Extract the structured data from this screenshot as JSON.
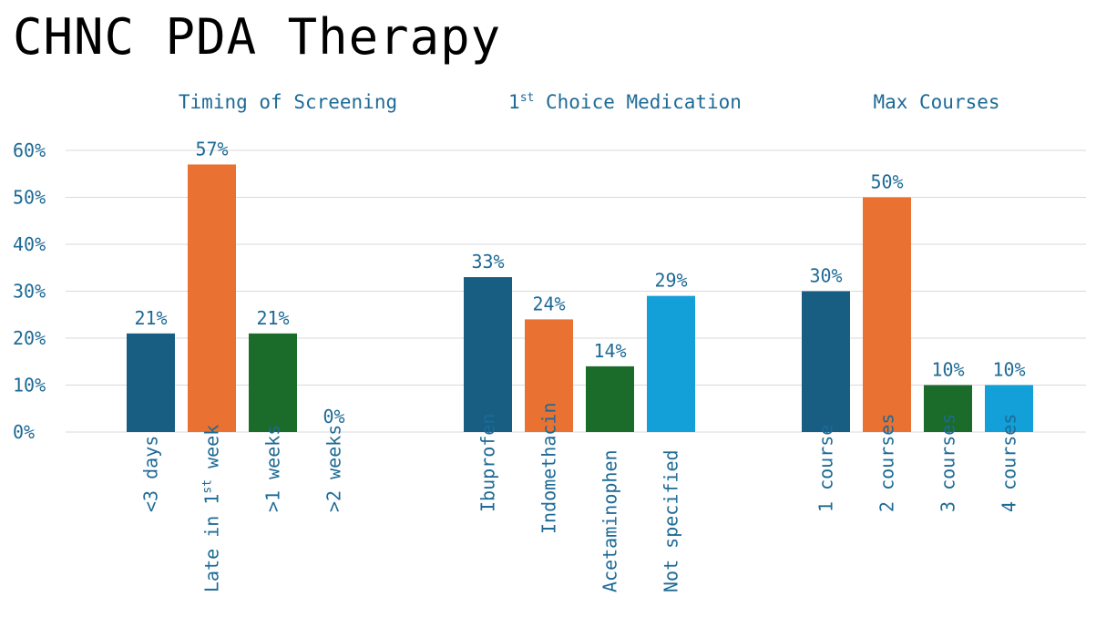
{
  "title": "CHNC PDA Therapy",
  "colors": {
    "dark_blue": "#175e82",
    "orange": "#e97131",
    "green": "#1b6b2a",
    "light_blue": "#139fd7",
    "text": "#1d6a96",
    "grid": "#d9d9d9"
  },
  "chart_data": [
    {
      "type": "bar",
      "title": "Timing of Screening",
      "categories": [
        "<3 days",
        "Late in 1st week",
        ">1 weeks",
        ">2 weeks"
      ],
      "values": [
        21,
        57,
        21,
        0
      ],
      "value_labels": [
        "21%",
        "57%",
        "21%",
        "0%"
      ],
      "bar_colors": [
        "#175e82",
        "#e97131",
        "#1b6b2a",
        "#139fd7"
      ],
      "ylim": [
        0,
        60
      ],
      "yticks": [
        "0%",
        "10%",
        "20%",
        "30%",
        "40%",
        "50%",
        "60%"
      ],
      "grid": true
    },
    {
      "type": "bar",
      "title": "1st Choice Medication",
      "categories": [
        "Ibuprofen",
        "Indomethacin",
        "Acetaminophen",
        "Not specified"
      ],
      "values": [
        33,
        24,
        14,
        29
      ],
      "value_labels": [
        "33%",
        "24%",
        "14%",
        "29%"
      ],
      "bar_colors": [
        "#175e82",
        "#e97131",
        "#1b6b2a",
        "#139fd7"
      ],
      "ylim": [
        0,
        60
      ],
      "grid": true
    },
    {
      "type": "bar",
      "title": "Max Courses",
      "categories": [
        "1 course",
        "2 courses",
        "3 courses",
        "4 courses"
      ],
      "values": [
        30,
        50,
        10,
        10
      ],
      "value_labels": [
        "30%",
        "50%",
        "10%",
        "10%"
      ],
      "bar_colors": [
        "#175e82",
        "#e97131",
        "#1b6b2a",
        "#139fd7"
      ],
      "ylim": [
        0,
        60
      ],
      "grid": true
    }
  ]
}
